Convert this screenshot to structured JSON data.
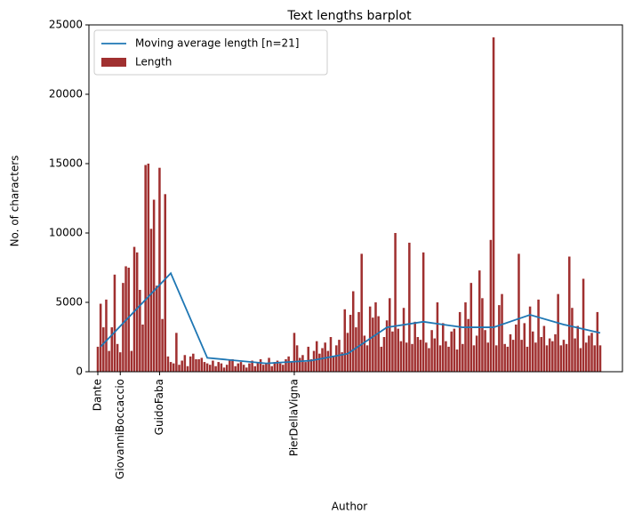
{
  "chart_data": {
    "type": "bar",
    "title": "Text lengths barplot",
    "xlabel": "Author",
    "ylabel": "No. of characters",
    "categories": [
      "Dante",
      null,
      null,
      null,
      null,
      null,
      null,
      null,
      "GiovanniBoccaccio",
      null,
      null,
      null,
      null,
      null,
      null,
      null,
      null,
      null,
      null,
      null,
      null,
      null,
      "GuidoFaba",
      null,
      null,
      null,
      null,
      null,
      null,
      null,
      null,
      null,
      null,
      null,
      null,
      null,
      null,
      null,
      null,
      null,
      null,
      null,
      null,
      null,
      null,
      null,
      null,
      null,
      null,
      null,
      null,
      null,
      null,
      null,
      null,
      null,
      null,
      null,
      null,
      null,
      null,
      null,
      null,
      null,
      null,
      null,
      null,
      null,
      null,
      null,
      "PierDellaVigna",
      null,
      null,
      null,
      null,
      null,
      null,
      null,
      null,
      null,
      null,
      null,
      null,
      null,
      null,
      null,
      null,
      null,
      null,
      null,
      null,
      null,
      null,
      null,
      null,
      null,
      null,
      null,
      null,
      null,
      null,
      null,
      null,
      null,
      null,
      null,
      null,
      null,
      null,
      null,
      null,
      null,
      null,
      null,
      null,
      null,
      null,
      null,
      null,
      null,
      null,
      null,
      null,
      null,
      null,
      null,
      null,
      null,
      null,
      null,
      null,
      null,
      null,
      null,
      null,
      null,
      null,
      null,
      null,
      null,
      null,
      null,
      null,
      null,
      null,
      null,
      null,
      null,
      null,
      null,
      null,
      null,
      null,
      null,
      null,
      null,
      null,
      null,
      null,
      null,
      null,
      null,
      null,
      null,
      null,
      null,
      null,
      null,
      null,
      null,
      null,
      null,
      null,
      null,
      null,
      null,
      null,
      null,
      null,
      null
    ],
    "series": [
      {
        "name": "Moving average length [n=21]",
        "type": "line",
        "color": "#1f77b4",
        "x": [
          1,
          26,
          39,
          60,
          76,
          89,
          103,
          116,
          130,
          141,
          154,
          166,
          179
        ],
        "values": [
          1800,
          7100,
          1000,
          600,
          800,
          1300,
          3200,
          3600,
          3200,
          3200,
          4100,
          3400,
          2800
        ]
      },
      {
        "name": "Length",
        "type": "bar",
        "color": "#a03030",
        "values": [
          1800,
          4900,
          3200,
          5200,
          1500,
          3200,
          7000,
          2000,
          1400,
          6400,
          7600,
          7500,
          1500,
          9000,
          8600,
          5900,
          3400,
          14900,
          15000,
          10300,
          12400,
          6200,
          14700,
          3800,
          12800,
          1100,
          700,
          600,
          2800,
          500,
          800,
          1200,
          400,
          1100,
          1300,
          900,
          900,
          1000,
          700,
          600,
          500,
          800,
          400,
          700,
          600,
          300,
          500,
          800,
          900,
          400,
          600,
          700,
          500,
          300,
          600,
          800,
          400,
          700,
          900,
          500,
          600,
          1000,
          400,
          700,
          800,
          600,
          500,
          900,
          1100,
          700,
          2800,
          1900,
          1000,
          1200,
          700,
          1800,
          900,
          1500,
          2200,
          1300,
          1700,
          2100,
          1500,
          2500,
          1100,
          1900,
          2300,
          1400,
          4500,
          2800,
          4100,
          5800,
          3200,
          4300,
          8500,
          2600,
          1900,
          4700,
          3900,
          5000,
          4000,
          1800,
          2500,
          3700,
          5300,
          2900,
          10000,
          3100,
          2200,
          4600,
          2100,
          9300,
          2000,
          3600,
          2500,
          2300,
          8600,
          2100,
          1700,
          3000,
          2400,
          5000,
          1900,
          3500,
          2200,
          1800,
          2900,
          3100,
          1600,
          4300,
          2000,
          5000,
          3800,
          6400,
          1900,
          2600,
          7300,
          5300,
          3000,
          2100,
          9500,
          24100,
          1900,
          4800,
          5600,
          2000,
          1800,
          2700,
          2300,
          3400,
          8500,
          2300,
          3500,
          1800,
          4700,
          2900,
          2100,
          5200,
          2500,
          3300,
          1900,
          2400,
          2200,
          2700,
          5600,
          1900,
          2300,
          2000,
          8300,
          4600,
          2400,
          3300,
          1700,
          6700,
          2100,
          2600,
          2800,
          1900,
          4300,
          1900
        ]
      }
    ],
    "ylim": [
      0,
      25000
    ],
    "yticks": [
      0,
      5000,
      10000,
      15000,
      20000,
      25000
    ],
    "legend": "upper left"
  }
}
